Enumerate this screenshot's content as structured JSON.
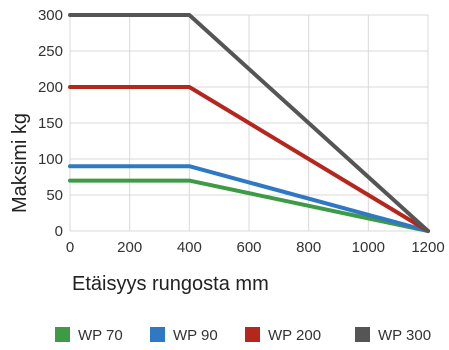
{
  "chart_data": {
    "type": "line",
    "xlabel": "Etäisyys rungosta mm",
    "ylabel": "Maksimi kg",
    "xlim": [
      0,
      1200
    ],
    "ylim": [
      0,
      300
    ],
    "x_ticks": [
      0,
      200,
      400,
      600,
      800,
      1000,
      1200
    ],
    "y_ticks": [
      0,
      50,
      100,
      150,
      200,
      250,
      300
    ],
    "grid": true,
    "legend_position": "bottom",
    "series": [
      {
        "name": "WP 70",
        "color": "#3d9a45",
        "x": [
          0,
          400,
          1200
        ],
        "y": [
          70,
          70,
          0
        ]
      },
      {
        "name": "WP 90",
        "color": "#2f78c4",
        "x": [
          0,
          400,
          1200
        ],
        "y": [
          90,
          90,
          0
        ]
      },
      {
        "name": "WP 200",
        "color": "#b5261d",
        "x": [
          0,
          400,
          1200
        ],
        "y": [
          200,
          200,
          0
        ]
      },
      {
        "name": "WP 300",
        "color": "#555555",
        "x": [
          0,
          400,
          1200
        ],
        "y": [
          300,
          300,
          0
        ]
      }
    ]
  }
}
